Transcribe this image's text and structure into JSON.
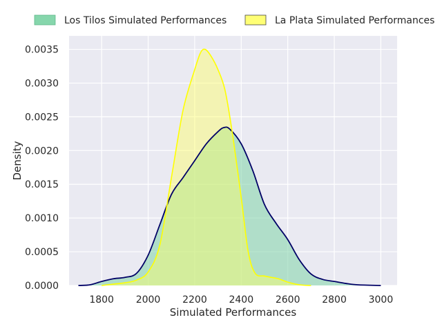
{
  "chart_data": {
    "type": "area",
    "title": "",
    "xlabel": "Simulated Performances",
    "ylabel": "Density",
    "xlim": [
      1660,
      3070
    ],
    "ylim": [
      0,
      0.0037
    ],
    "xticks": [
      1800,
      2000,
      2200,
      2400,
      2600,
      2800,
      3000
    ],
    "xtick_labels": [
      "1800",
      "2000",
      "2200",
      "2400",
      "2600",
      "2800",
      "3000"
    ],
    "yticks": [
      0,
      0.0005,
      0.001,
      0.0015,
      0.002,
      0.0025,
      0.003,
      0.0035
    ],
    "ytick_labels": [
      "0.0000",
      "0.0005",
      "0.0010",
      "0.0015",
      "0.0020",
      "0.0025",
      "0.0030",
      "0.0035"
    ],
    "grid": true,
    "legend_position": "top-center",
    "background_color": "#eaeaf2",
    "series": [
      {
        "name": "Los Tilos Simulated Performances",
        "fill_color": "#7fd4a8",
        "line_color": "#000066",
        "x": [
          1700,
          1750,
          1800,
          1850,
          1900,
          1950,
          2000,
          2050,
          2100,
          2150,
          2200,
          2250,
          2300,
          2325,
          2350,
          2400,
          2450,
          2500,
          2550,
          2600,
          2650,
          2700,
          2750,
          2800,
          2850,
          2900,
          3000
        ],
        "y": [
          0.0,
          1e-05,
          6e-05,
          0.0001,
          0.00012,
          0.00018,
          0.00045,
          0.0009,
          0.00135,
          0.0016,
          0.00185,
          0.0021,
          0.00228,
          0.00234,
          0.00232,
          0.0021,
          0.0017,
          0.0012,
          0.00092,
          0.00068,
          0.00038,
          0.00017,
          9e-05,
          6e-05,
          3e-05,
          1e-05,
          0.0
        ]
      },
      {
        "name": "La Plata Simulated Performances",
        "fill_color": "#ffff66",
        "line_color": "#ffff00",
        "x": [
          1800,
          1850,
          1900,
          1950,
          2000,
          2050,
          2100,
          2150,
          2200,
          2225,
          2245,
          2270,
          2300,
          2330,
          2360,
          2400,
          2430,
          2460,
          2500,
          2530,
          2560,
          2600,
          2650,
          2700
        ],
        "y": [
          0.0,
          2e-05,
          4e-05,
          8e-05,
          0.0002,
          0.0006,
          0.0016,
          0.0026,
          0.0032,
          0.00345,
          0.0035,
          0.0034,
          0.0032,
          0.0029,
          0.0023,
          0.0013,
          0.0005,
          0.00018,
          0.00014,
          0.00012,
          0.0001,
          5e-05,
          1e-05,
          0.0
        ]
      }
    ]
  }
}
